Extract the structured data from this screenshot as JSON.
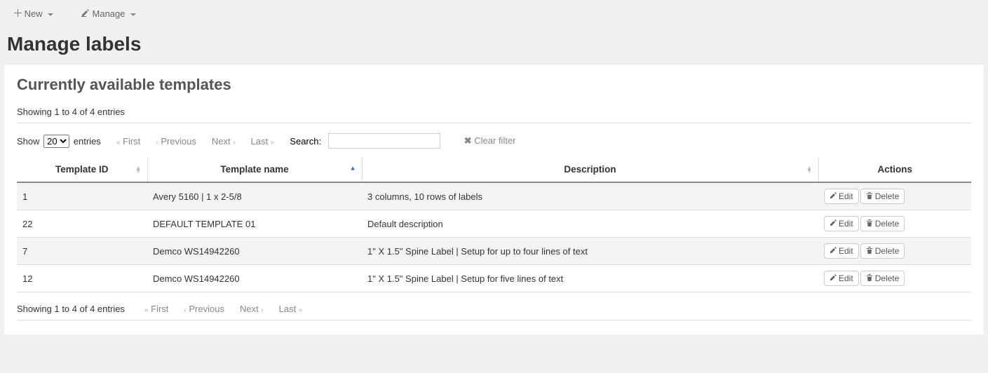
{
  "toolbar": {
    "new_label": "New",
    "manage_label": "Manage"
  },
  "page_title": "Manage labels",
  "section_title": "Currently available templates",
  "table": {
    "info_top": "Showing 1 to 4 of 4 entries",
    "info_bottom": "Showing 1 to 4 of 4 entries",
    "length_prefix": "Show",
    "length_suffix": "entries",
    "length_value": "20",
    "pager": {
      "first": "First",
      "previous": "Previous",
      "next": "Next",
      "last": "Last"
    },
    "search_label": "Search:",
    "search_value": "",
    "clear_filter": "Clear filter",
    "columns": {
      "id": "Template ID",
      "name": "Template name",
      "description": "Description",
      "actions": "Actions"
    },
    "rows": [
      {
        "id": "1",
        "name": "Avery 5160 | 1 x 2-5/8",
        "description": "3 columns, 10 rows of labels"
      },
      {
        "id": "22",
        "name": "DEFAULT TEMPLATE 01",
        "description": "Default description"
      },
      {
        "id": "7",
        "name": "Demco WS14942260",
        "description": "1\" X 1.5\" Spine Label | Setup for up to four lines of text"
      },
      {
        "id": "12",
        "name": "Demco WS14942260",
        "description": "1\" X 1.5\" Spine Label | Setup for five lines of text"
      }
    ],
    "actions": {
      "edit": "Edit",
      "delete": "Delete"
    }
  },
  "colors": {
    "page_bg": "#f0f0f0",
    "panel_bg": "#ffffff",
    "row_stripe": "#f4f4f4",
    "border": "#dddddd",
    "header_border": "#888888",
    "text": "#333333",
    "muted": "#888888",
    "sort_active": "#2b6cb0"
  }
}
